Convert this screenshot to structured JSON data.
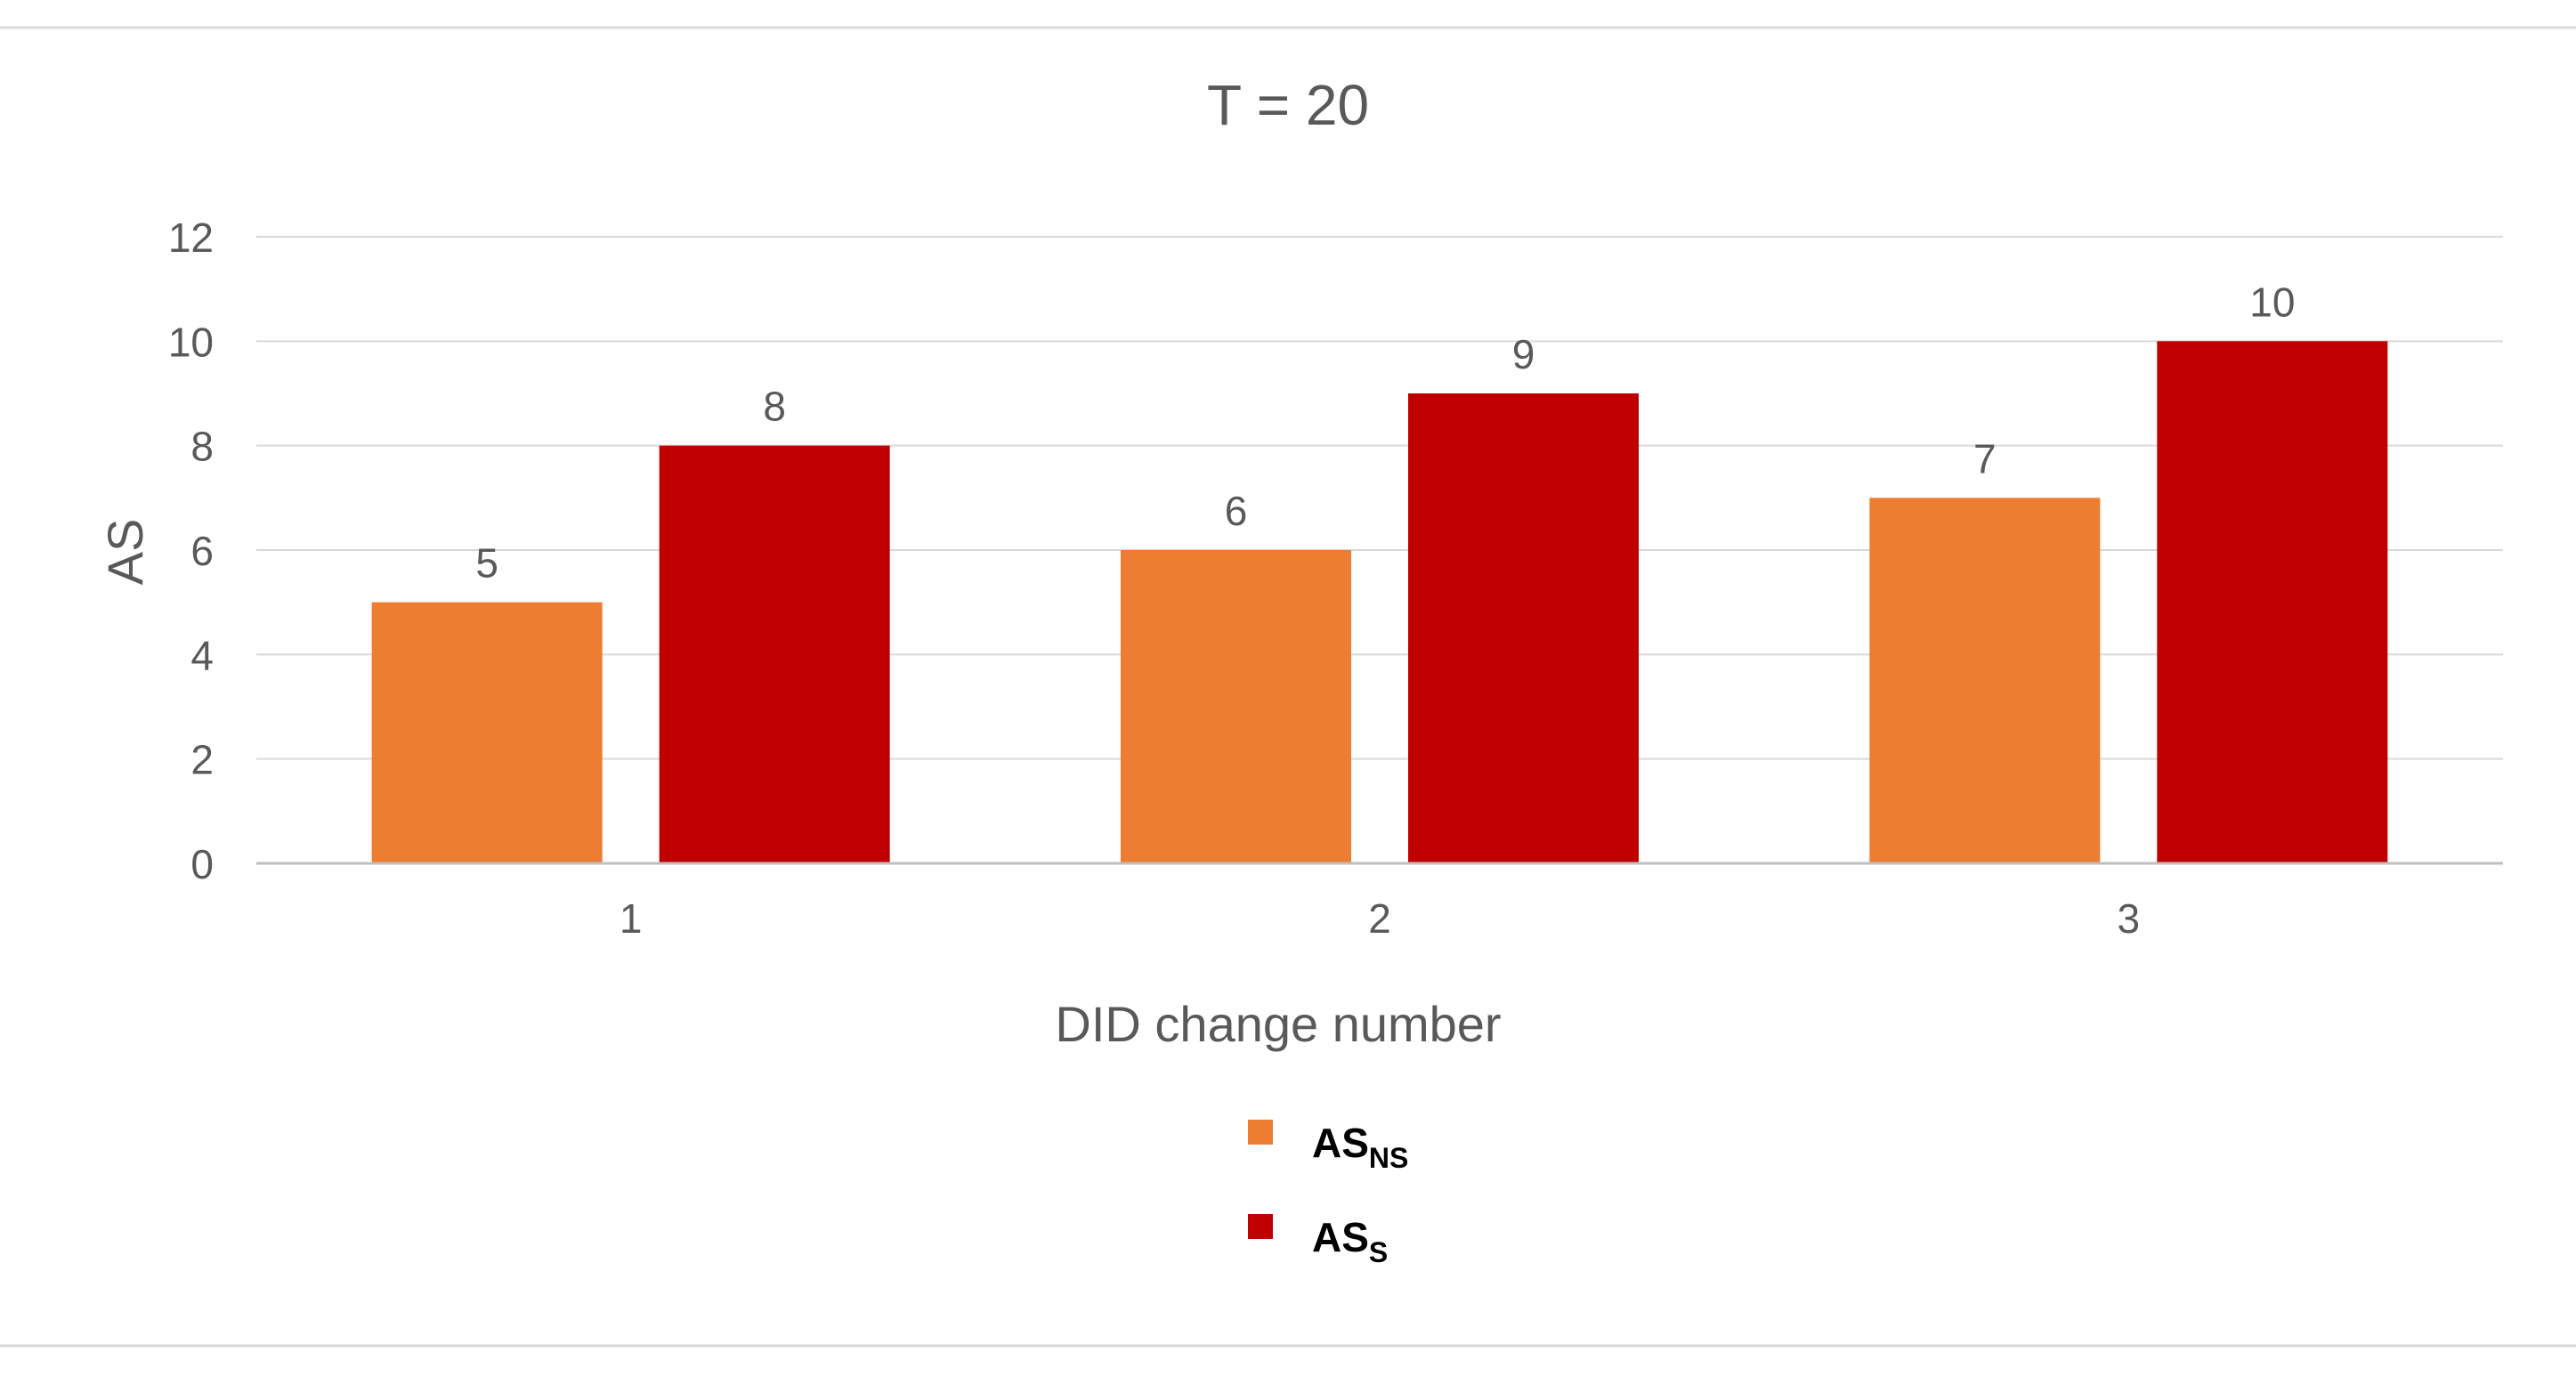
{
  "colors": {
    "series_ns": "#ED7D31",
    "series_s": "#C00000",
    "grid": "#D9D9D9",
    "axis_line": "#BFBFBF",
    "text": "#595959",
    "legend_text": "#000000"
  },
  "chart_data": {
    "type": "bar",
    "title": "T = 20",
    "xlabel": "DID change number",
    "ylabel": "AS",
    "categories": [
      "1",
      "2",
      "3"
    ],
    "ylim": [
      0,
      12
    ],
    "yticks": [
      0,
      2,
      4,
      6,
      8,
      10,
      12
    ],
    "grid": true,
    "legend_position": "bottom",
    "series": [
      {
        "name": "AS",
        "subscript": "NS",
        "color": "#ED7D31",
        "values": [
          5,
          6,
          7
        ]
      },
      {
        "name": "AS",
        "subscript": "S",
        "color": "#C00000",
        "values": [
          8,
          9,
          10
        ]
      }
    ]
  }
}
